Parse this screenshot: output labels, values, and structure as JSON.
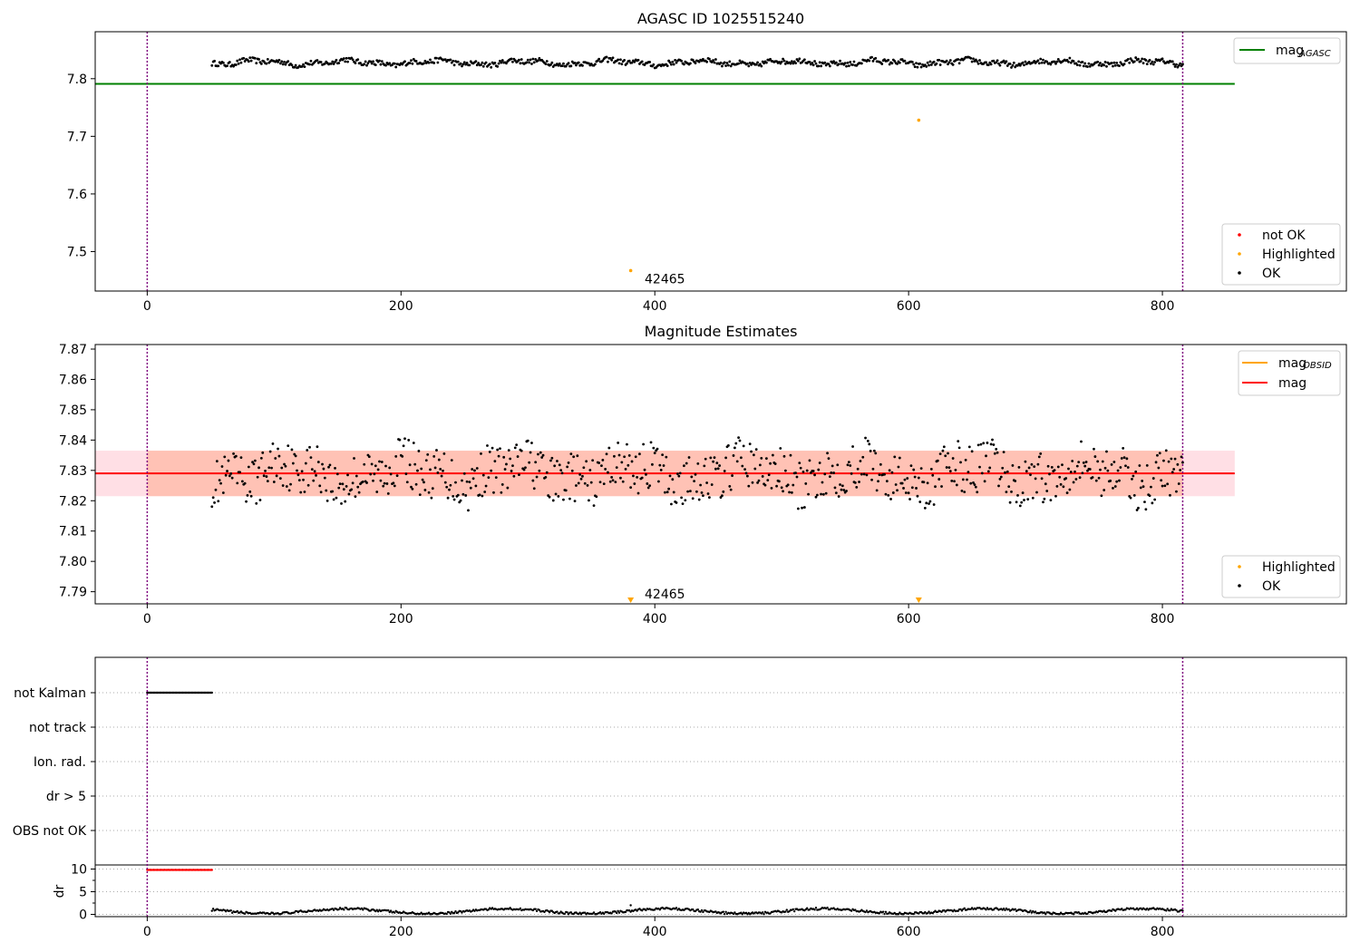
{
  "chart_data": [
    {
      "type": "scatter",
      "title": "AGASC ID 1025515240",
      "xlim": [
        -41,
        945
      ],
      "ylim": [
        7.4315,
        7.8815
      ],
      "xticks": [
        0,
        200,
        400,
        600,
        800
      ],
      "yticks": [
        7.5,
        7.6,
        7.7,
        7.8
      ],
      "ytick_labels": [
        "7.5",
        "7.6",
        "7.7",
        "7.8"
      ],
      "vlines": [
        0,
        816
      ],
      "hline": {
        "name": "mag_AGASC",
        "y": 7.791,
        "x": [
          -41,
          857
        ],
        "color": "#008000"
      },
      "series_level": 7.828,
      "series_x_range": [
        51,
        816
      ],
      "highlighted": [
        {
          "x": 381,
          "y": 7.467
        },
        {
          "x": 608,
          "y": 7.728
        }
      ],
      "annotation": {
        "text": "42465",
        "x": 392,
        "y": 7.445
      },
      "legend_line": {
        "label": "mag",
        "sub": "AGASC",
        "color": "#008000"
      },
      "legend_markers": [
        {
          "label": "not OK",
          "color": "#ff0000"
        },
        {
          "label": "Highlighted",
          "color": "#ffa500"
        },
        {
          "label": "OK",
          "color": "#000000"
        }
      ]
    },
    {
      "type": "scatter",
      "title": "Magnitude Estimates",
      "xlim": [
        -41,
        945
      ],
      "ylim": [
        7.786,
        7.8715
      ],
      "xticks": [
        0,
        200,
        400,
        600,
        800
      ],
      "yticks": [
        7.79,
        7.8,
        7.81,
        7.82,
        7.83,
        7.84,
        7.85,
        7.86,
        7.87
      ],
      "ytick_labels": [
        "7.79",
        "7.80",
        "7.81",
        "7.82",
        "7.83",
        "7.84",
        "7.85",
        "7.86",
        "7.87"
      ],
      "vlines": [
        0,
        816
      ],
      "mag": {
        "y": 7.829,
        "x": [
          -41,
          857
        ],
        "color": "#ff0000"
      },
      "band_outer": {
        "y": [
          7.8215,
          7.8365
        ],
        "x": [
          -41,
          857
        ],
        "color": "#ffc0cb"
      },
      "band_inner": {
        "y": [
          7.8215,
          7.8365
        ],
        "x": [
          0,
          816
        ],
        "color": "#ffa07a"
      },
      "series_level": 7.829,
      "series_x_range": [
        51,
        816
      ],
      "highlighted_down": [
        {
          "x": 381
        },
        {
          "x": 608
        }
      ],
      "annotation": {
        "text": "42465",
        "x": 392,
        "y": 7.7878
      },
      "legend_lines": [
        {
          "label": "mag",
          "sub": "OBSID",
          "color": "#ffa500"
        },
        {
          "label": "mag",
          "color": "#ff0000"
        }
      ],
      "legend_markers": [
        {
          "label": "Highlighted",
          "color": "#ffa500"
        },
        {
          "label": "OK",
          "color": "#000000"
        }
      ]
    },
    {
      "type": "scatter",
      "title": "",
      "xlim": [
        -41,
        945
      ],
      "flag_labels": [
        "not Kalman",
        "not track",
        "Ion. rad.",
        "dr > 5",
        "OBS not OK"
      ],
      "flag_hits": {
        "not Kalman": [
          0,
          51
        ]
      },
      "dr_ylabel": "dr",
      "dr_yticks": [
        0,
        5,
        10
      ],
      "dr_ytick_labels": [
        "0",
        "5",
        "10"
      ],
      "dr_ylim": [
        -0.5,
        10.7
      ],
      "dr_clipped": {
        "x": [
          0,
          51
        ],
        "y": 10
      },
      "dr_series_x_range": [
        51,
        816
      ],
      "dr_outlier": {
        "x": 381,
        "y": 2.0
      },
      "xticks": [
        0,
        200,
        400,
        600,
        800
      ],
      "vlines": [
        0,
        816
      ]
    }
  ]
}
